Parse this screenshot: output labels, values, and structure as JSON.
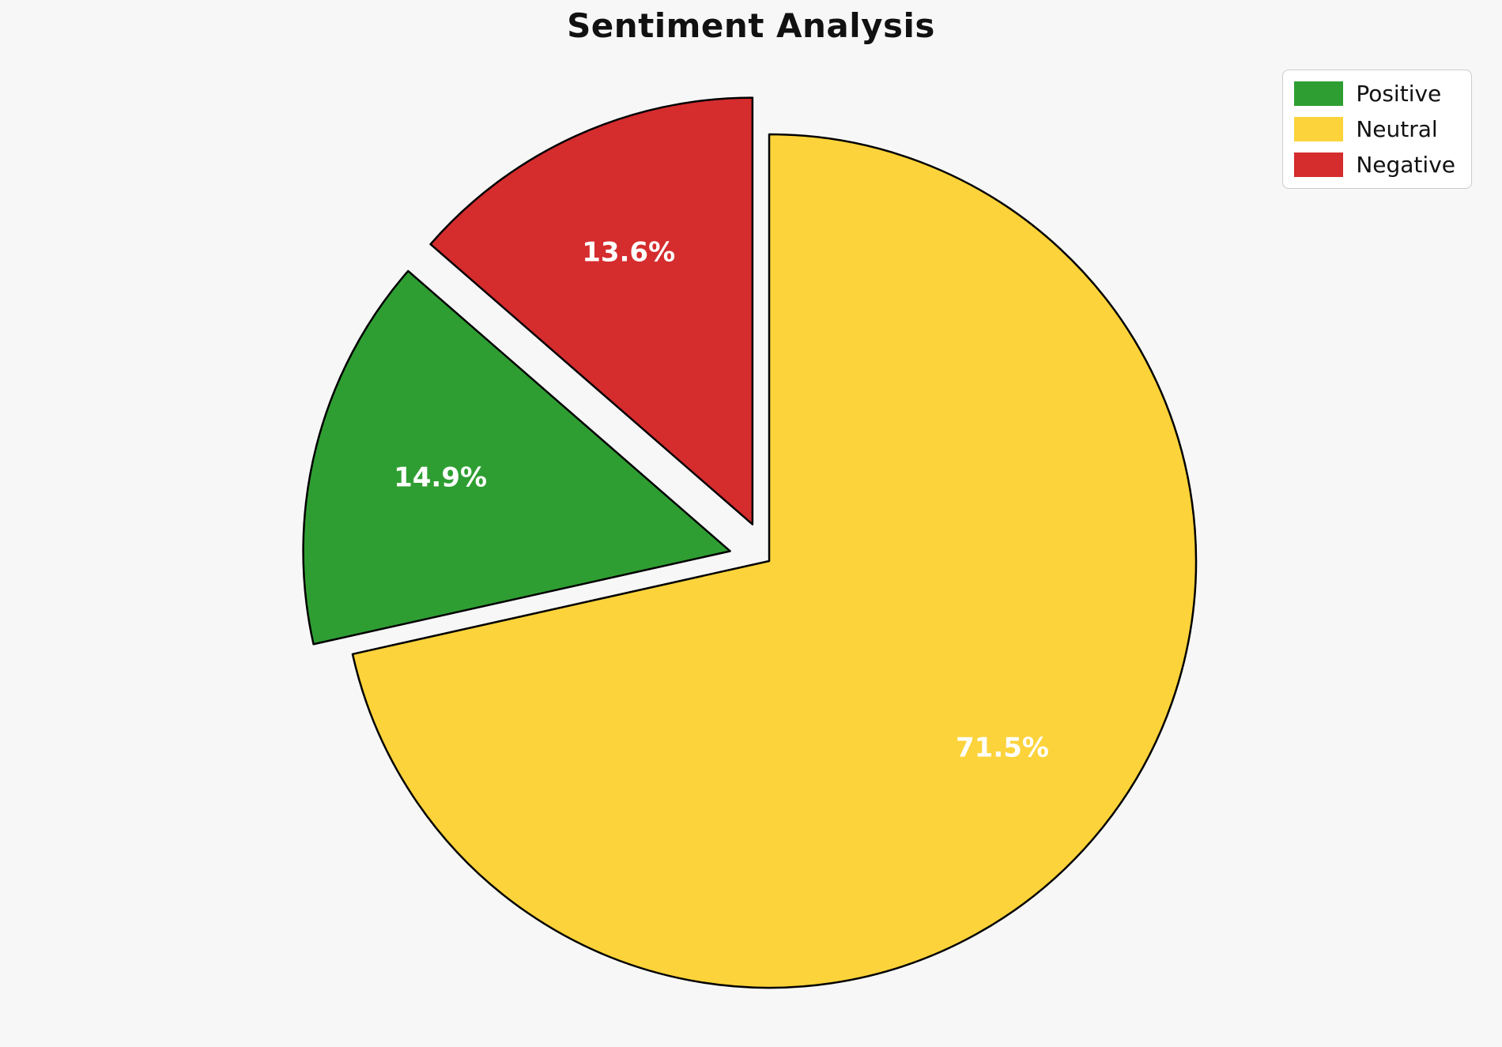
{
  "title": "Sentiment Analysis",
  "background_color": "#f7f7f7",
  "chart_data": {
    "type": "pie",
    "title": "Sentiment Analysis",
    "legend_position": "upper right",
    "start_angle_deg": 138.96,
    "direction": "counterclockwise",
    "edge_color": "#000000",
    "edge_width": 2.5,
    "label_color": "#ffffff",
    "pct_distance": 0.7,
    "categories": [
      "Positive",
      "Neutral",
      "Negative"
    ],
    "values": [
      14.9,
      71.5,
      13.6
    ],
    "slices": [
      {
        "label": "Positive",
        "value": 14.9,
        "pct_label": "14.9%",
        "color": "#2f9e32",
        "exploded": true
      },
      {
        "label": "Neutral",
        "value": 71.5,
        "pct_label": "71.5%",
        "color": "#fcd33a",
        "exploded": false
      },
      {
        "label": "Negative",
        "value": 13.6,
        "pct_label": "13.6%",
        "color": "#d52c2e",
        "exploded": true
      }
    ]
  },
  "legend": {
    "items": [
      {
        "label": "Positive",
        "color": "#2f9e32"
      },
      {
        "label": "Neutral",
        "color": "#fcd33a"
      },
      {
        "label": "Negative",
        "color": "#d52c2e"
      }
    ]
  }
}
